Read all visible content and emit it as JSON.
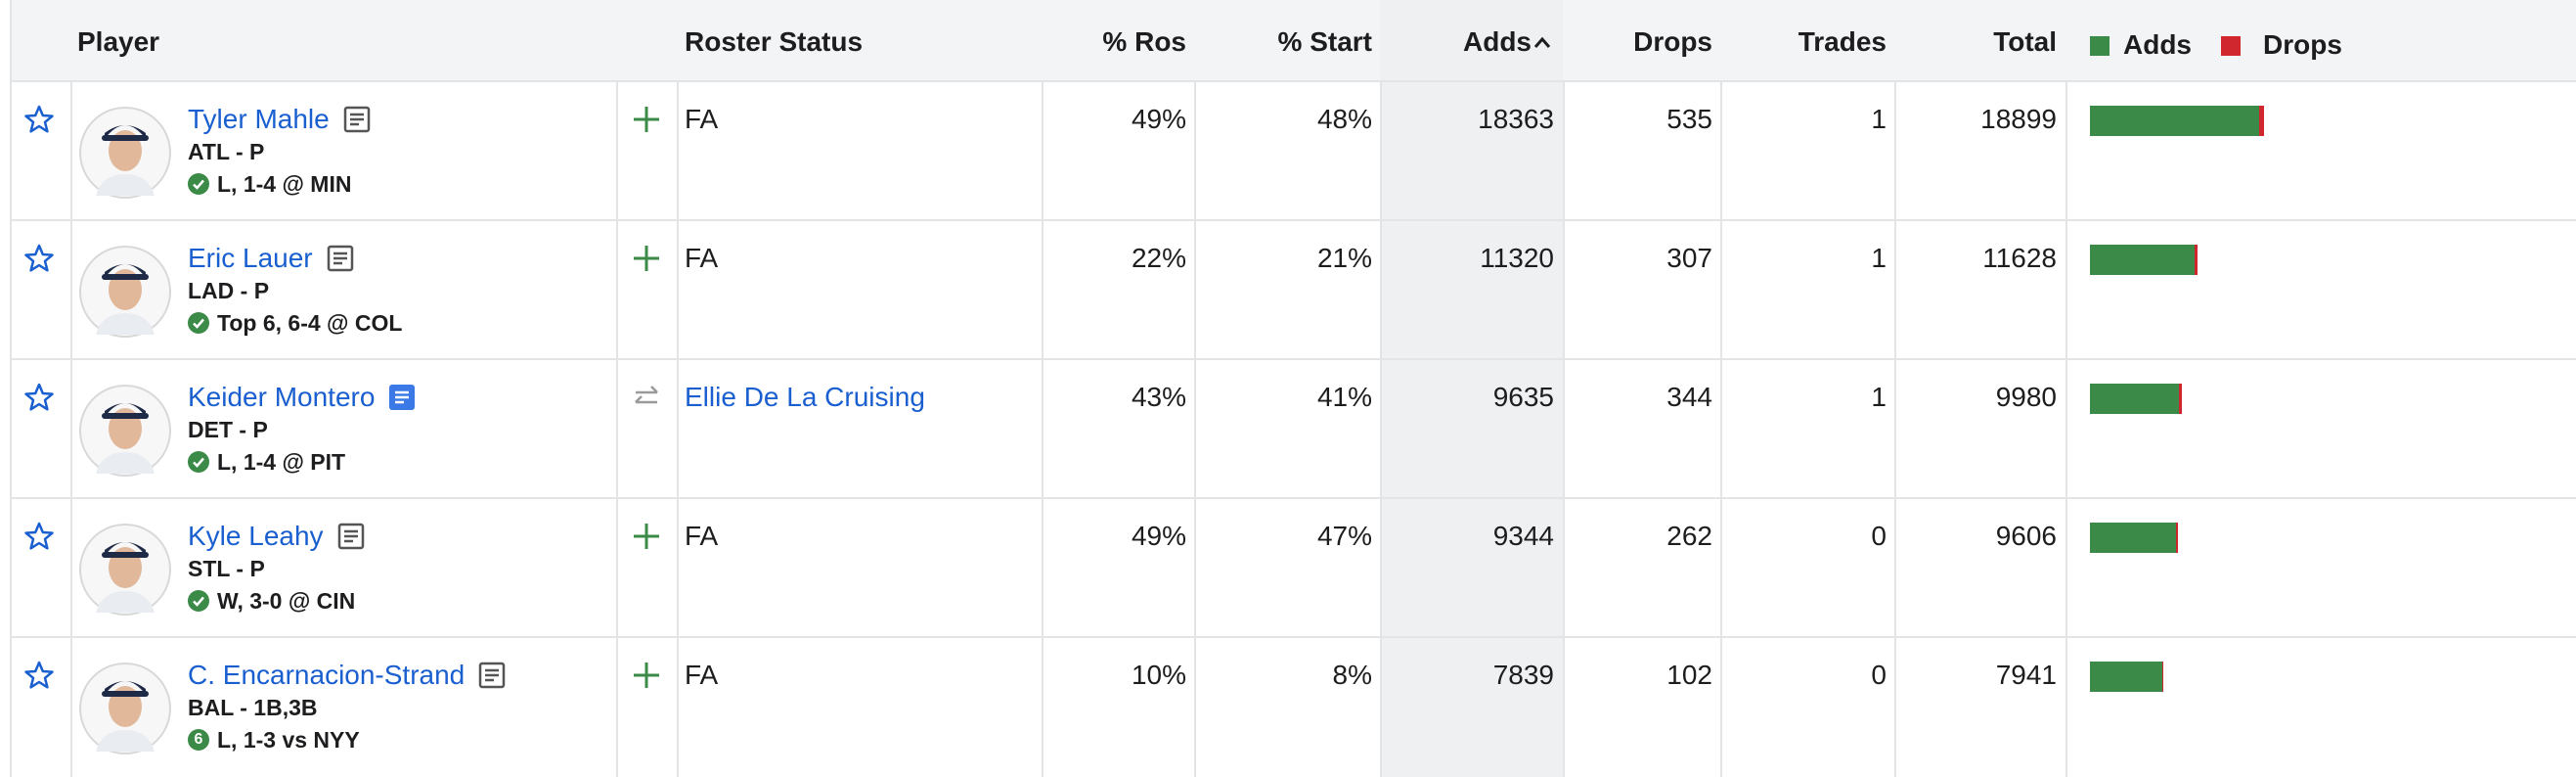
{
  "header": {
    "columns": [
      "Player",
      "Roster Status",
      "% Ros",
      "% Start",
      "Adds",
      "Drops",
      "Trades",
      "Total"
    ],
    "legend": [
      "Adds",
      "Drops"
    ]
  },
  "bar_colors": {
    "adds": "#3b8a47",
    "drops": "#d0262d"
  },
  "rows": [
    {
      "name": "Tyler Mahle",
      "team_pos": "ATL - P",
      "game": "L, 1-4 @ MIN",
      "roster_status": "FA",
      "pct_ros": "49%",
      "pct_start": "48%",
      "adds": 18363,
      "drops": 535,
      "trades": 1,
      "total": 18899
    },
    {
      "name": "Eric Lauer",
      "team_pos": "LAD - P",
      "game": "Top 6, 6-4 @ COL",
      "roster_status": "FA",
      "pct_ros": "22%",
      "pct_start": "21%",
      "adds": 11320,
      "drops": 307,
      "trades": 1,
      "total": 11628
    },
    {
      "name": "Keider Montero",
      "team_pos": "DET - P",
      "game": "L, 1-4 @ PIT",
      "roster_status": "Ellie De La Cruising",
      "pct_ros": "43%",
      "pct_start": "41%",
      "adds": 9635,
      "drops": 344,
      "trades": 1,
      "total": 9980
    },
    {
      "name": "Kyle Leahy",
      "team_pos": "STL - P",
      "game": "W, 3-0 @ CIN",
      "roster_status": "FA",
      "pct_ros": "49%",
      "pct_start": "47%",
      "adds": 9344,
      "drops": 262,
      "trades": 0,
      "total": 9606
    },
    {
      "name": "C. Encarnacion-Strand",
      "team_pos": "BAL - 1B,3B",
      "game": "L, 1-3 vs NYY",
      "game_badge": "6",
      "roster_status": "FA",
      "pct_ros": "10%",
      "pct_start": "8%",
      "adds": 7839,
      "drops": 102,
      "trades": 0,
      "total": 7941
    }
  ]
}
